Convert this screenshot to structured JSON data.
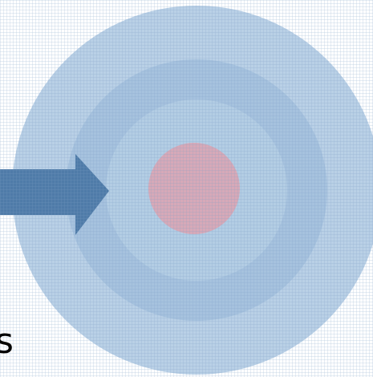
{
  "diagram": {
    "rings": [
      {
        "name": "outer-ring",
        "color": "#b9d0e6"
      },
      {
        "name": "second-ring",
        "color": "#a6c2de"
      },
      {
        "name": "third-ring",
        "color": "#b3cde4"
      },
      {
        "name": "center",
        "color": "#d7a9b8"
      }
    ],
    "arrow": {
      "color": "#4f7ba8"
    },
    "grid_texture": {
      "color": "#7e9fc4"
    }
  },
  "edge_text": "s"
}
